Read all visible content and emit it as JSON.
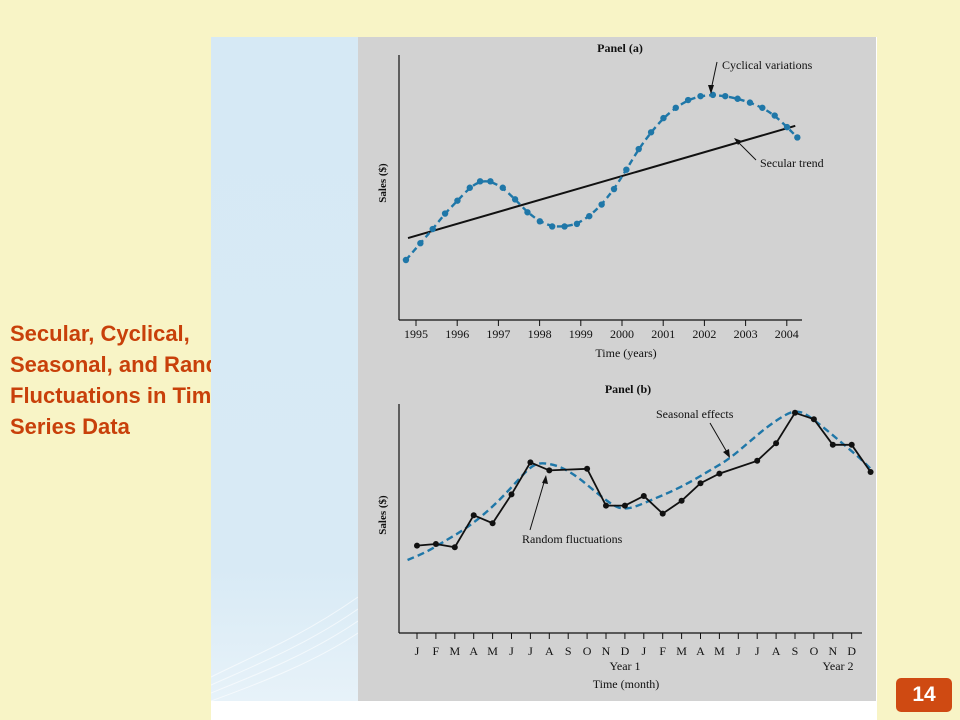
{
  "slide": {
    "title_lines": [
      "Secular, Cyclical,",
      "Seasonal, and Random",
      "Fluctuations in Time",
      "Series Data"
    ],
    "page_number": "14",
    "colors": {
      "title": "#c8400a",
      "badge": "#cf4a12",
      "background": "#f8f4c6"
    }
  },
  "chart_data": [
    {
      "type": "line",
      "title": "Panel (a)",
      "xlabel": "Time (years)",
      "ylabel": "Sales ($)",
      "x_ticks": [
        "1995",
        "1996",
        "1997",
        "1998",
        "1999",
        "2000",
        "2001",
        "2002",
        "2003",
        "2004"
      ],
      "annotations": [
        "Cyclical variations",
        "Secular trend"
      ],
      "series": [
        {
          "name": "Cyclical variations",
          "style": "dashed-with-dots",
          "color": "#1f77a8",
          "x": [
            1994.95,
            1995.3,
            1995.6,
            1995.9,
            1996.2,
            1996.5,
            1996.75,
            1997.0,
            1997.3,
            1997.6,
            1997.9,
            1998.2,
            1998.5,
            1998.8,
            1999.1,
            1999.4,
            1999.7,
            2000.0,
            2000.3,
            2000.6,
            2000.9,
            2001.2,
            2001.5,
            2001.8,
            2002.1,
            2002.4,
            2002.7,
            2003.0,
            2003.3,
            2003.6,
            2003.9,
            2004.2,
            2004.45
          ],
          "y": [
            1.0,
            2.3,
            3.4,
            4.6,
            5.6,
            6.6,
            7.1,
            7.1,
            6.6,
            5.7,
            4.7,
            4.0,
            3.6,
            3.6,
            3.8,
            4.4,
            5.3,
            6.5,
            8.0,
            9.6,
            10.9,
            12.0,
            12.8,
            13.4,
            13.7,
            13.8,
            13.7,
            13.5,
            13.2,
            12.8,
            12.2,
            11.3,
            10.5
          ]
        },
        {
          "name": "Secular trend",
          "style": "solid",
          "color": "#111111",
          "x": [
            1995.0,
            2004.4
          ],
          "y": [
            2.7,
            11.4
          ]
        }
      ]
    },
    {
      "type": "line",
      "title": "Panel (b)",
      "xlabel": "Time (month)",
      "ylabel": "Sales ($)",
      "x_ticks": [
        "J",
        "F",
        "M",
        "A",
        "M",
        "J",
        "J",
        "A",
        "S",
        "O",
        "N",
        "D",
        "J",
        "F",
        "M",
        "A",
        "M",
        "J",
        "J",
        "A",
        "S",
        "O",
        "N",
        "D"
      ],
      "group_labels": [
        "Year 1",
        "Year 2"
      ],
      "annotations": [
        "Seasonal effects",
        "Random fluctuations"
      ],
      "series": [
        {
          "name": "Random fluctuations",
          "style": "solid-with-dots",
          "color": "#111111",
          "x": [
            1,
            2,
            3,
            4,
            5,
            6,
            7,
            8,
            10,
            11,
            12,
            13,
            14,
            15,
            16,
            17,
            19,
            20,
            21,
            22,
            23,
            24,
            25
          ],
          "y": [
            4.6,
            4.7,
            4.5,
            6.5,
            6.0,
            7.8,
            9.8,
            9.3,
            9.4,
            7.1,
            7.1,
            7.7,
            6.6,
            7.4,
            8.5,
            9.1,
            9.9,
            11.0,
            12.9,
            12.5,
            10.9,
            10.9,
            9.2
          ]
        },
        {
          "name": "Seasonal effects",
          "style": "dashed",
          "color": "#1f77a8",
          "x": [
            0.5,
            1.5,
            2.5,
            3.5,
            4.5,
            5.5,
            6.5,
            7.0,
            7.5,
            8.5,
            9.5,
            10.5,
            11.5,
            12.0,
            12.5,
            13.5,
            14.5,
            15.5,
            16.5,
            17.5,
            18.5,
            19.5,
            20.5,
            21.0,
            21.5,
            22.5,
            23.5,
            24.5,
            25.0
          ],
          "y": [
            3.7,
            4.2,
            4.9,
            5.6,
            6.5,
            7.6,
            8.9,
            9.5,
            9.8,
            9.6,
            8.9,
            7.9,
            7.0,
            6.9,
            7.0,
            7.5,
            8.0,
            8.6,
            9.3,
            10.0,
            11.0,
            12.0,
            12.8,
            13.0,
            12.9,
            12.0,
            11.0,
            10.0,
            9.4
          ]
        }
      ]
    }
  ]
}
